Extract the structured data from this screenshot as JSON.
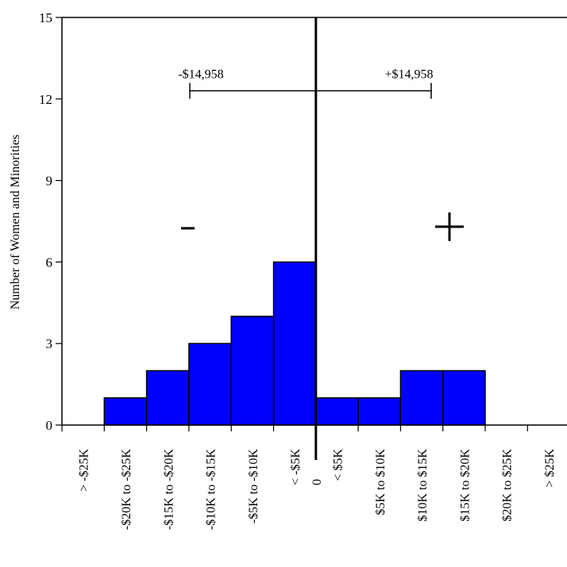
{
  "chart_data": {
    "type": "bar",
    "title": "",
    "xlabel": "",
    "ylabel": "Number of Women and Minorities",
    "ylim": [
      0,
      15
    ],
    "yticks": [
      0,
      3,
      6,
      9,
      12,
      15
    ],
    "categories": [
      "> -$25K",
      "-$20K to -$25K",
      "-$15K to -$20K",
      "-$10K to -$15K",
      "-$5K to -$10K",
      "< -$5K",
      "< $5K",
      "$5K to $10K",
      "$10K to $15K",
      "$15K to $20K",
      "$20K to $25K",
      "> $25K"
    ],
    "values": [
      0,
      1,
      2,
      3,
      4,
      6,
      1,
      1,
      2,
      2,
      0,
      0
    ],
    "zero_label": "0",
    "bar_color": "#0000ff",
    "grid": false,
    "annotations": {
      "minus_label": "-$14,958",
      "plus_label": "+$14,958",
      "bracket_y": 12.3,
      "minus_sign": "-",
      "plus_sign": "+",
      "sign_y": 7.3
    }
  }
}
